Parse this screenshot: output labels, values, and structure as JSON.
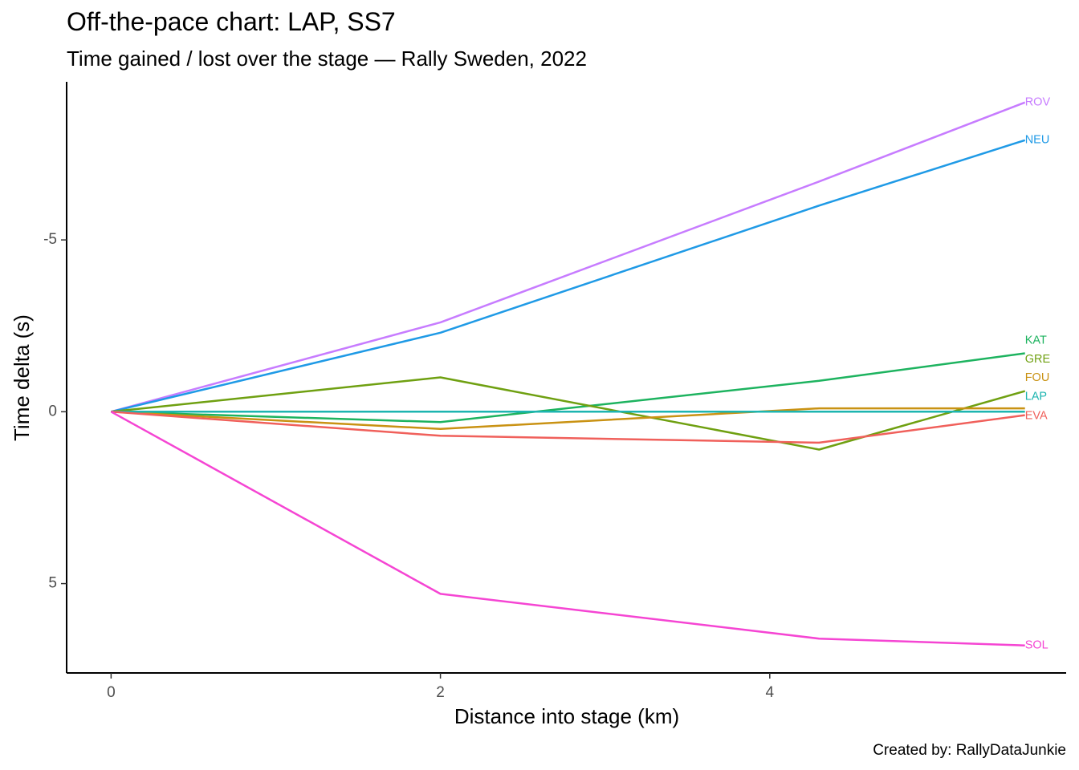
{
  "chart_data": {
    "type": "line",
    "title": "Off-the-pace chart: LAP, SS7",
    "subtitle": "Time gained / lost over the stage — Rally Sweden, 2022",
    "xlabel": "Distance into stage (km)",
    "ylabel": "Time delta (s)",
    "caption": "Created by: RallyDataJunkie",
    "xlim": [
      -0.27,
      5.8
    ],
    "ylim": [
      -9.6,
      7.6
    ],
    "y_reversed": true,
    "grid": false,
    "legend": "none",
    "x_ticks": [
      0,
      2,
      4
    ],
    "x_tick_labels": [
      "0",
      "2",
      "4"
    ],
    "y_ticks": [
      -5,
      0,
      5
    ],
    "y_tick_labels": [
      "-5",
      "0",
      "5"
    ],
    "series": [
      {
        "name": "ROV",
        "color": "#C77CFF",
        "x": [
          0,
          2.0,
          4.3,
          5.55
        ],
        "y": [
          0,
          -2.6,
          -6.7,
          -9.0
        ]
      },
      {
        "name": "NEU",
        "color": "#1F9AE6",
        "x": [
          0,
          2.0,
          4.3,
          5.55
        ],
        "y": [
          0,
          -2.3,
          -6.0,
          -7.9
        ]
      },
      {
        "name": "KAT",
        "color": "#1DB35F",
        "x": [
          0,
          2.0,
          4.3,
          5.55
        ],
        "y": [
          0,
          0.3,
          -0.9,
          -1.7
        ]
      },
      {
        "name": "GRE",
        "color": "#6FA011",
        "x": [
          0,
          2.0,
          4.3,
          5.55
        ],
        "y": [
          0,
          -1.0,
          1.1,
          -0.6
        ]
      },
      {
        "name": "FOU",
        "color": "#C99213",
        "x": [
          0,
          2.0,
          4.3,
          5.55
        ],
        "y": [
          0,
          0.5,
          -0.1,
          -0.1
        ]
      },
      {
        "name": "LAP",
        "color": "#1DB5B0",
        "x": [
          0,
          2.0,
          4.3,
          5.55
        ],
        "y": [
          0,
          0,
          0,
          0
        ]
      },
      {
        "name": "EVA",
        "color": "#F0605B",
        "x": [
          0,
          2.0,
          4.3,
          5.55
        ],
        "y": [
          0,
          0.7,
          0.9,
          0.1
        ]
      },
      {
        "name": "SOL",
        "color": "#F545D3",
        "x": [
          0,
          2.0,
          4.3,
          5.55
        ],
        "y": [
          0,
          5.3,
          6.6,
          6.8
        ]
      }
    ],
    "end_labels": [
      "ROV",
      "NEU",
      "KAT",
      "GRE",
      "FOU",
      "LAP",
      "EVA",
      "SOL"
    ],
    "end_label_y": [
      -9.0,
      -7.9,
      -2.07,
      -1.52,
      -0.98,
      -0.44,
      0.12,
      6.8
    ]
  }
}
